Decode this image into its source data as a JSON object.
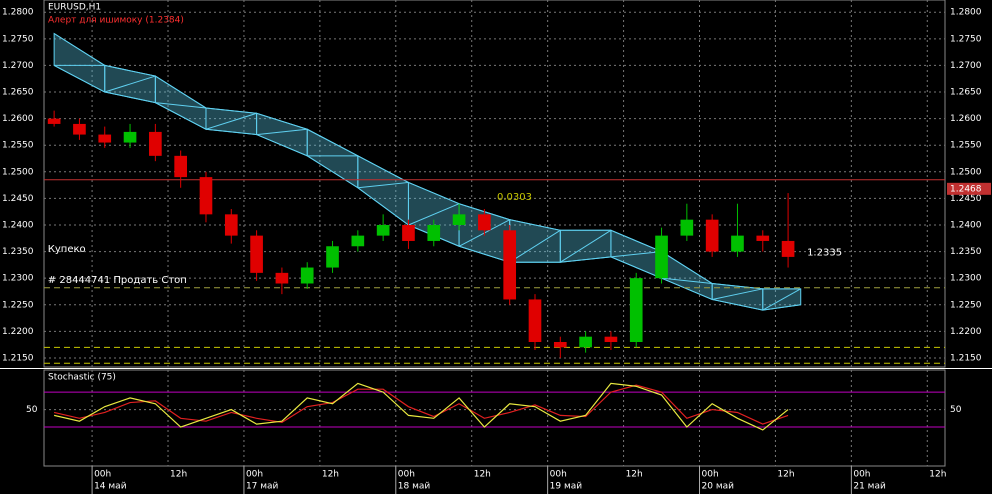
{
  "chart_data": {
    "type": "candlestick",
    "title": "EURUSD,H1",
    "alert_text": "Алерт для ишимоку (1.2384)",
    "annotations": [
      {
        "text": "Купеко",
        "x": -7,
        "y": 1.2355,
        "color": "#ffffff"
      },
      {
        "text": "# 28444741 Продать Стоп",
        "x": -7,
        "y": 1.2297,
        "color": "#ffffff"
      },
      {
        "text": "0.0303",
        "x": 64,
        "y": 1.2453,
        "color": "#c8c800"
      },
      {
        "text": "1.2335",
        "x": 113,
        "y": 1.2348,
        "color": "#ffffff"
      }
    ],
    "x": [
      -6,
      -2,
      2,
      6,
      10,
      14,
      18,
      22,
      26,
      30,
      34,
      38,
      42,
      46,
      50,
      54,
      58,
      62,
      66,
      70,
      74,
      78,
      82,
      86,
      90,
      94,
      98,
      102,
      106,
      110
    ],
    "open": [
      1.26,
      1.259,
      1.257,
      1.2555,
      1.2575,
      1.253,
      1.249,
      1.242,
      1.238,
      1.231,
      1.229,
      1.232,
      1.236,
      1.238,
      1.24,
      1.237,
      1.24,
      1.242,
      1.239,
      1.226,
      1.218,
      1.217,
      1.219,
      1.218,
      1.23,
      1.238,
      1.241,
      1.235,
      1.238,
      1.237
    ],
    "high": [
      1.2615,
      1.26,
      1.2585,
      1.259,
      1.259,
      1.254,
      1.25,
      1.243,
      1.239,
      1.232,
      1.233,
      1.237,
      1.239,
      1.242,
      1.241,
      1.241,
      1.244,
      1.243,
      1.24,
      1.227,
      1.219,
      1.22,
      1.22,
      1.231,
      1.2395,
      1.244,
      1.242,
      1.244,
      1.239,
      1.246
    ],
    "low": [
      1.2585,
      1.256,
      1.2545,
      1.2545,
      1.252,
      1.247,
      1.2405,
      1.2365,
      1.2295,
      1.227,
      1.228,
      1.231,
      1.235,
      1.237,
      1.2355,
      1.236,
      1.239,
      1.238,
      1.225,
      1.2165,
      1.215,
      1.216,
      1.2165,
      1.217,
      1.229,
      1.237,
      1.234,
      1.234,
      1.235,
      1.232
    ],
    "close": [
      1.259,
      1.257,
      1.2555,
      1.2575,
      1.253,
      1.249,
      1.242,
      1.238,
      1.231,
      1.229,
      1.232,
      1.236,
      1.238,
      1.24,
      1.237,
      1.24,
      1.242,
      1.239,
      1.226,
      1.218,
      1.217,
      1.219,
      1.218,
      1.23,
      1.238,
      1.241,
      1.235,
      1.238,
      1.237,
      1.234
    ],
    "up_color": "#00c000",
    "down_color": "#e00000",
    "cloud": {
      "x": [
        -6,
        2,
        10,
        18,
        26,
        34,
        42,
        50,
        58,
        66,
        74,
        82,
        90,
        98,
        106,
        112
      ],
      "upper": [
        1.276,
        1.27,
        1.268,
        1.262,
        1.261,
        1.258,
        1.253,
        1.248,
        1.244,
        1.241,
        1.239,
        1.239,
        1.235,
        1.229,
        1.228,
        1.228
      ],
      "lower": [
        1.27,
        1.265,
        1.263,
        1.258,
        1.257,
        1.253,
        1.247,
        1.24,
        1.236,
        1.233,
        1.233,
        1.234,
        1.23,
        1.226,
        1.224,
        1.225
      ],
      "color": "#5fd0f0"
    },
    "levels": [
      {
        "value": 1.2485,
        "color": "#c03030"
      },
      {
        "value": 1.2282,
        "color": "#a0a040"
      },
      {
        "value": 1.217,
        "color": "#c8c800"
      },
      {
        "value": 1.214,
        "color": "#c8c800"
      }
    ],
    "xlim": [
      -7.6,
      134.8
    ],
    "ylim": [
      1.2133,
      1.2823
    ],
    "xticks": [
      {
        "value": 0,
        "label": "00h"
      },
      12,
      {
        "value": 24,
        "label": "00h"
      },
      36,
      {
        "value": 48,
        "label": "00h"
      },
      60,
      {
        "value": 72,
        "label": "00h"
      },
      84,
      {
        "value": 96,
        "label": "00h"
      },
      108,
      {
        "value": 120,
        "label": "00h"
      },
      132
    ],
    "xtick_labels_12": "12h",
    "xdates": [
      {
        "value": 0,
        "label": "14 май"
      },
      {
        "value": 24,
        "label": "17 май"
      },
      {
        "value": 48,
        "label": "18 май"
      },
      {
        "value": 72,
        "label": "19 май"
      },
      {
        "value": 96,
        "label": "20 май"
      },
      {
        "value": 120,
        "label": "21 май"
      }
    ],
    "yticks": [
      {
        "value": 1.28,
        "label": "1.2800"
      },
      {
        "value": 1.275,
        "label": "1.2750"
      },
      {
        "value": 1.27,
        "label": "1.2700"
      },
      {
        "value": 1.265,
        "label": "1.2650"
      },
      {
        "value": 1.26,
        "label": "1.2600"
      },
      {
        "value": 1.255,
        "label": "1.2550"
      },
      {
        "value": 1.25,
        "label": "1.2500"
      },
      {
        "value": 1.245,
        "label": "1.2450"
      },
      {
        "value": 1.24,
        "label": "1.2400"
      },
      {
        "value": 1.235,
        "label": "1.2350"
      },
      {
        "value": 1.23,
        "label": "1.2300"
      },
      {
        "value": 1.225,
        "label": "1.2250"
      },
      {
        "value": 1.22,
        "label": "1.2200"
      },
      {
        "value": 1.215,
        "label": "1.2150"
      }
    ],
    "price_marker": {
      "value": 1.2468,
      "label": "1.2468",
      "color": "#c03030"
    },
    "grid": true,
    "stochastic": {
      "title": "Stochastic (75)",
      "k": [
        40,
        30,
        55,
        70,
        60,
        20,
        35,
        50,
        25,
        30,
        70,
        60,
        95,
        80,
        40,
        35,
        70,
        20,
        60,
        55,
        30,
        40,
        95,
        90,
        75,
        20,
        60,
        35,
        15,
        50
      ],
      "d": [
        45,
        35,
        45,
        62,
        65,
        35,
        30,
        45,
        35,
        28,
        55,
        62,
        85,
        85,
        55,
        38,
        60,
        35,
        45,
        58,
        40,
        38,
        80,
        92,
        80,
        35,
        50,
        45,
        25,
        40
      ],
      "k_color": "#e8e840",
      "d_color": "#e02020",
      "ylim": [
        -47,
        118
      ],
      "yticks": [
        50
      ],
      "levels": [
        20,
        80
      ],
      "level_color": "#c000c0"
    }
  }
}
